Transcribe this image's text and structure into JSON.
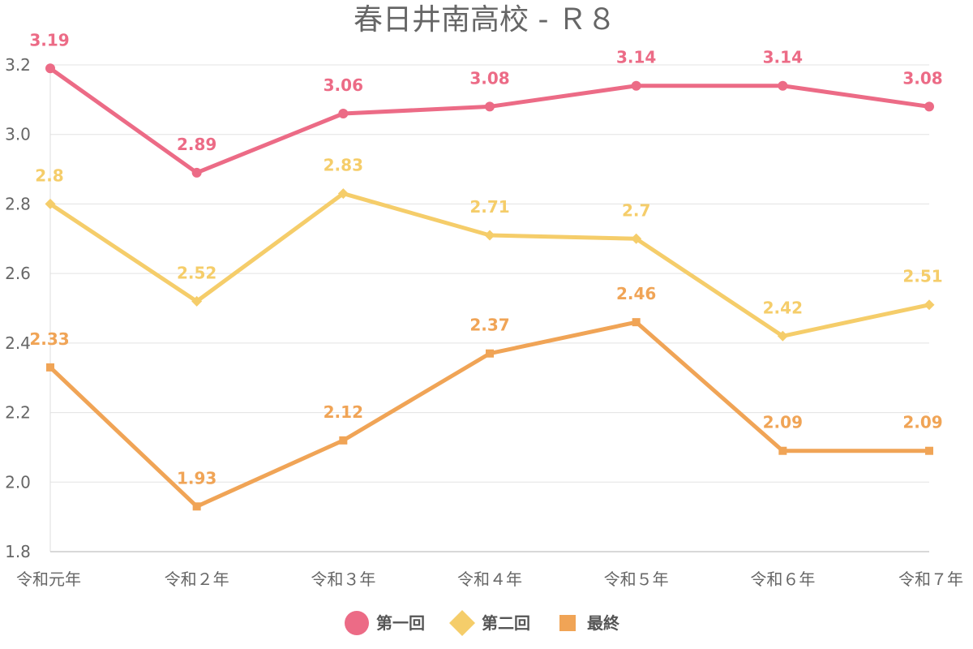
{
  "chart_data": {
    "type": "line",
    "title": "春日井南高校 - Ｒ８",
    "xlabel": "",
    "ylabel": "",
    "categories": [
      "令和元年",
      "令和２年",
      "令和３年",
      "令和４年",
      "令和５年",
      "令和６年",
      "令和７年"
    ],
    "ylim": [
      1.8,
      3.2
    ],
    "yticks": [
      1.8,
      2.0,
      2.2,
      2.4,
      2.6,
      2.8,
      3.0,
      3.2
    ],
    "ytick_labels": [
      "1.8",
      "2.0",
      "2.2",
      "2.4",
      "2.6",
      "2.8",
      "3.0",
      "3.2"
    ],
    "grid": true,
    "legend_position": "bottom-center",
    "series": [
      {
        "name": "第一回",
        "color": "#EC6B86",
        "marker": "circle",
        "values": [
          3.19,
          2.89,
          3.06,
          3.08,
          3.14,
          3.14,
          3.08
        ],
        "labels": [
          "3.19",
          "2.89",
          "3.06",
          "3.08",
          "3.14",
          "3.14",
          "3.08"
        ]
      },
      {
        "name": "第二回",
        "color": "#F5CD6A",
        "marker": "diamond",
        "values": [
          2.8,
          2.52,
          2.83,
          2.71,
          2.7,
          2.42,
          2.51
        ],
        "labels": [
          "2.8",
          "2.52",
          "2.83",
          "2.71",
          "2.7",
          "2.42",
          "2.51"
        ]
      },
      {
        "name": "最終",
        "color": "#F0A456",
        "marker": "square",
        "values": [
          2.33,
          1.93,
          2.12,
          2.37,
          2.46,
          2.09,
          2.09
        ],
        "labels": [
          "2.33",
          "1.93",
          "2.12",
          "2.37",
          "2.46",
          "2.09",
          "2.09"
        ]
      }
    ]
  }
}
